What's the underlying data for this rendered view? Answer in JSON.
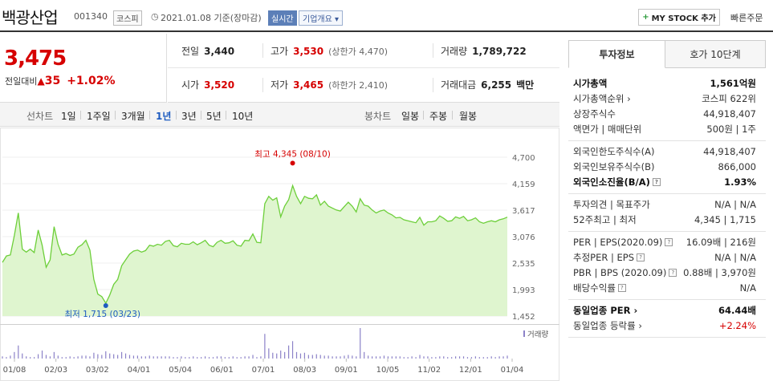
{
  "header": {
    "stock_name": "백광산업",
    "stock_code": "001340",
    "market": "코스피",
    "date": "2021.01.08 기준(장마감)",
    "live_label": "실시간",
    "overview_label": "기업개요 ▾",
    "my_stock_label": "MY STOCK 추가",
    "quick_order_label": "빠른주문"
  },
  "price": {
    "current": "3,475",
    "change_label": "전일대비",
    "change_amount": "35",
    "change_pct": "+1.02%"
  },
  "stats": {
    "prev_close_label": "전일",
    "prev_close": "3,440",
    "high_label": "고가",
    "high": "3,530",
    "upper_limit": "(상한가 4,470)",
    "volume_label": "거래량",
    "volume": "1,789,722",
    "open_label": "시가",
    "open": "3,520",
    "low_label": "저가",
    "low": "3,465",
    "lower_limit": "(하한가 2,410)",
    "trade_value_label": "거래대금",
    "trade_value": "6,255",
    "trade_value_unit": "백만"
  },
  "periods": {
    "line_label": "선차트",
    "line_items": [
      "1일",
      "1주일",
      "3개월",
      "1년",
      "3년",
      "5년",
      "10년"
    ],
    "active": "1년",
    "candle_label": "봉차트",
    "candle_items": [
      "일봉",
      "주봉",
      "월봉"
    ]
  },
  "chart_data": {
    "type": "area",
    "title": "",
    "y_ticks": [
      "4,700",
      "4,159",
      "3,617",
      "3,076",
      "2,535",
      "1,993",
      "1,452"
    ],
    "ylim": [
      1452,
      4700
    ],
    "x_ticks": [
      "01/08",
      "02/03",
      "03/02",
      "04/01",
      "05/04",
      "06/01",
      "07/01",
      "08/03",
      "09/01",
      "10/05",
      "11/02",
      "12/01",
      "01/04"
    ],
    "max_label": "최고 4,345 (08/10)",
    "min_label": "최저 1,715 (03/23)",
    "volume_legend": "거래량",
    "colors": {
      "line": "#6dcf3a",
      "fill": "#dff5cf",
      "high": "#d60000",
      "low": "#1d5bc0",
      "volume": "#8c82c8"
    },
    "series": [
      {
        "values": [
          2550,
          2680,
          2700,
          3100,
          3560,
          2820,
          2760,
          2820,
          2750,
          3210,
          2900,
          2450,
          2600,
          3280,
          2920,
          2700,
          2730,
          2690,
          2720,
          2860,
          2910,
          3000,
          2800,
          2200,
          1900,
          1850,
          1715,
          1880,
          2100,
          2200,
          2480,
          2600,
          2720,
          2780,
          2800,
          2760,
          2790,
          2900,
          2880,
          2920,
          2900,
          2980,
          3000,
          2890,
          2870,
          2940,
          2920,
          2920,
          2970,
          2910,
          2950,
          3000,
          2900,
          2870,
          2960,
          3000,
          2940,
          2950,
          2990,
          2900,
          2880,
          3000,
          2990,
          3130,
          2960,
          2950,
          3750,
          3900,
          3820,
          3870,
          3480,
          3700,
          3830,
          4120,
          3900,
          3750,
          3900,
          3860,
          3850,
          3930,
          3720,
          3800,
          3700,
          3660,
          3620,
          3600,
          3690,
          3780,
          3700,
          3580,
          3850,
          3720,
          3700,
          3620,
          3560,
          3600,
          3620,
          3560,
          3520,
          3460,
          3470,
          3420,
          3400,
          3380,
          3360,
          3470,
          3310,
          3380,
          3380,
          3400,
          3500,
          3450,
          3390,
          3400,
          3480,
          3450,
          3490,
          3400,
          3420,
          3460,
          3380,
          3350,
          3380,
          3400,
          3380,
          3420,
          3440,
          3475
        ]
      }
    ],
    "volume_values": [
      3,
      2,
      4,
      9,
      18,
      7,
      3,
      2,
      2,
      6,
      11,
      5,
      3,
      9,
      4,
      2,
      2,
      3,
      2,
      3,
      4,
      4,
      3,
      8,
      6,
      5,
      10,
      7,
      6,
      5,
      9,
      7,
      5,
      4,
      4,
      3,
      3,
      4,
      3,
      3,
      3,
      3,
      3,
      2,
      2,
      3,
      2,
      2,
      3,
      2,
      2,
      3,
      2,
      2,
      3,
      3,
      2,
      2,
      3,
      2,
      2,
      3,
      3,
      5,
      2,
      3,
      34,
      14,
      8,
      7,
      11,
      9,
      18,
      24,
      9,
      7,
      8,
      5,
      5,
      6,
      5,
      4,
      4,
      3,
      3,
      3,
      4,
      5,
      4,
      3,
      42,
      9,
      4,
      3,
      3,
      3,
      4,
      3,
      3,
      3,
      3,
      2,
      2,
      3,
      2,
      5,
      3,
      3,
      2,
      2,
      3,
      3,
      2,
      2,
      3,
      3,
      3,
      2,
      2,
      3,
      2,
      2,
      2,
      3,
      2,
      3,
      3,
      4
    ]
  },
  "panel": {
    "tab_info": "투자정보",
    "tab_quote": "호가 10단계",
    "rows1": [
      {
        "k": "시가총액",
        "v": "1,561억원",
        "bold": true
      },
      {
        "k": "시가총액순위 ›",
        "v": "코스피 622위"
      },
      {
        "k": "상장주식수",
        "v": "44,918,407"
      },
      {
        "k": "액면가 | 매매단위",
        "v": "500원 | 1주"
      }
    ],
    "rows2": [
      {
        "k": "외국인한도주식수(A)",
        "v": "44,918,407"
      },
      {
        "k": "외국인보유주식수(B)",
        "v": "866,000"
      },
      {
        "k": "외국인소진율(B/A)",
        "v": "1.93%",
        "bold": true,
        "help": "?"
      }
    ],
    "rows3": [
      {
        "k": "투자의견 | 목표주가",
        "v": "N/A | N/A"
      },
      {
        "k": "52주최고 | 최저",
        "v": "4,345 | 1,715"
      }
    ],
    "rows4": [
      {
        "k": "PER | EPS(2020.09)",
        "v": "16.09배 | 216원",
        "help": "?"
      },
      {
        "k": "추정PER | EPS",
        "v": "N/A | N/A",
        "help": "?"
      },
      {
        "k": "PBR | BPS (2020.09)",
        "v": "0.88배 | 3,970원",
        "help": "?"
      },
      {
        "k": "배당수익률",
        "v": "N/A",
        "help": "?"
      }
    ],
    "rows5": [
      {
        "k": "동일업종 PER ›",
        "v": "64.44배",
        "bold": true
      },
      {
        "k": "동일업종 등락률 ›",
        "v": "+2.24%",
        "up": true
      }
    ]
  }
}
